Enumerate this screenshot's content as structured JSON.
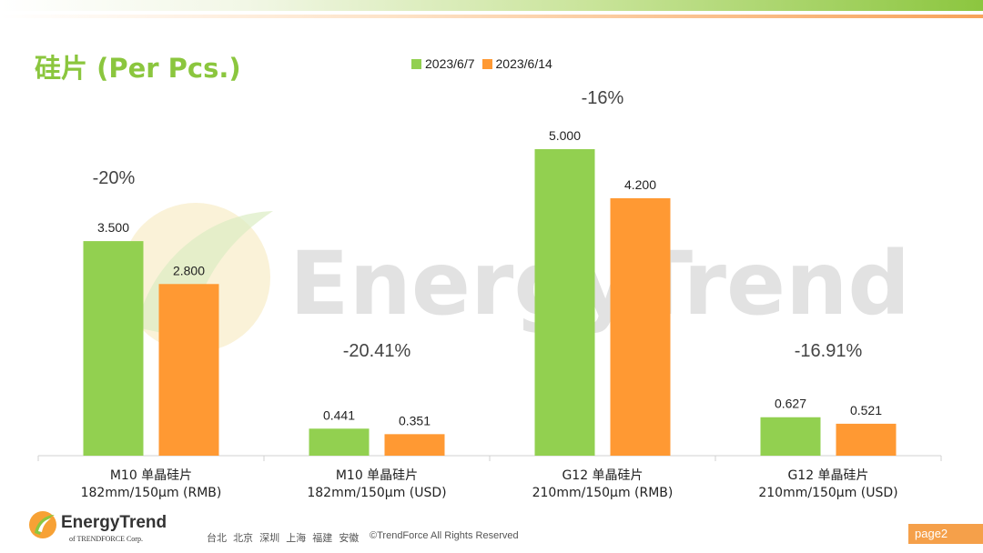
{
  "title": "硅片 (Per Pcs.)",
  "colors": {
    "green": "#92d050",
    "orange": "#ff9933",
    "title": "#8bc63e",
    "watermark": "#d9d9d9"
  },
  "watermark": "EnergyTrend",
  "chart_data": {
    "type": "bar",
    "title": "硅片 (Per Pcs.)",
    "legend_position": "top",
    "categories": [
      [
        "M10 单晶硅片",
        "182mm/150μm (RMB)"
      ],
      [
        "M10 单晶硅片",
        "182mm/150μm (USD)"
      ],
      [
        "G12 单晶硅片",
        "210mm/150μm  (RMB)"
      ],
      [
        "G12 单晶硅片",
        "210mm/150μm  (USD)"
      ]
    ],
    "series": [
      {
        "name": "2023/6/7",
        "values": [
          3.5,
          0.441,
          5.0,
          0.627
        ],
        "labels": [
          "3.500",
          "0.441",
          "5.000",
          "0.627"
        ]
      },
      {
        "name": "2023/6/14",
        "values": [
          2.8,
          0.351,
          4.2,
          0.521
        ],
        "labels": [
          "2.800",
          "0.351",
          "4.200",
          "0.521"
        ]
      }
    ],
    "changes": [
      "-20%",
      "-20.41%",
      "-16%",
      "-16.91%"
    ],
    "ylim": [
      0,
      5.2
    ],
    "grid": false
  },
  "footer": {
    "brand": "EnergyTrend",
    "brand_sub": "of TRENDFORCE Corp.",
    "cities": [
      "台北",
      "北京",
      "深圳",
      "上海",
      "福建",
      "安徽"
    ],
    "copyright": "©TrendForce All Rights Reserved",
    "page": "page2"
  }
}
